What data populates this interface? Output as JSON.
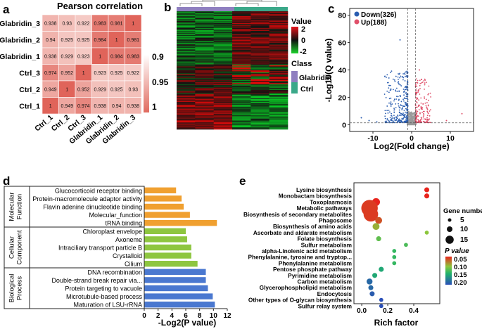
{
  "panels": [
    "a",
    "b",
    "c",
    "d",
    "e"
  ],
  "chart_data": [
    {
      "id": "a",
      "type": "heatmap",
      "title": "Pearson correlation",
      "rows": [
        "Glabridin_3",
        "Glabridin_2",
        "Glabridin_1",
        "Ctrl_3",
        "Ctrl_2",
        "Ctrl_1"
      ],
      "cols": [
        "Ctrl_1",
        "Ctrl_2",
        "Ctrl_3",
        "Glabridin_1",
        "Glabridin_2",
        "Glabridin_3"
      ],
      "values": [
        [
          "0.938",
          "0.93",
          "0.922",
          "0.983",
          "0.981",
          "1"
        ],
        [
          "0.94",
          "0.925",
          "0.925",
          "0.984",
          "1",
          "0.981"
        ],
        [
          "0.938",
          "0.929",
          "0.923",
          "1",
          "0.984",
          "0.983"
        ],
        [
          "0.974",
          "0.952",
          "1",
          "0.923",
          "0.925",
          "0.922"
        ],
        [
          "0.949",
          "1",
          "0.952",
          "0.929",
          "0.925",
          "0.93"
        ],
        [
          "1",
          "0.949",
          "0.974",
          "0.938",
          "0.94",
          "0.938"
        ]
      ],
      "colorbar_ticks": [
        "0.9",
        "0.95",
        "1"
      ],
      "colors": {
        "low": "#fbe7e3",
        "high": "#e0645a"
      }
    },
    {
      "id": "b",
      "type": "heatmap",
      "legend_value_title": "Value",
      "value_ticks": [
        "2",
        "0",
        "-2"
      ],
      "legend_class_title": "Class",
      "classes": [
        "Glabridin",
        "Ctrl"
      ],
      "class_colors": [
        "#8f7fc0",
        "#3aa889"
      ],
      "rows": 514,
      "columns": 6
    },
    {
      "id": "c",
      "type": "scatter",
      "xlabel": "Log2(Fold change)",
      "ylabel": "-Log10(Q value)",
      "xticks": [
        "-10",
        "0",
        "10"
      ],
      "yticks": [
        "0",
        "20",
        "40",
        "60",
        "80"
      ],
      "xlim": [
        -16,
        16
      ],
      "ylim": [
        -5,
        85
      ],
      "legend": [
        {
          "label": "Down(326)",
          "color": "#2a5db0"
        },
        {
          "label": "Up(188)",
          "color": "#e0506a"
        }
      ]
    },
    {
      "id": "d",
      "type": "bar",
      "orientation": "horizontal",
      "xlabel": "-Log2(P value)",
      "xticks": [
        "0",
        "2",
        "4",
        "6",
        "8",
        "10",
        "12"
      ],
      "xlim": [
        0,
        12
      ],
      "groups": [
        {
          "name": "Molecular Function",
          "color": "#f0a030",
          "categories": [
            "Glucocorticoid receptor binding",
            "Protein-macromolecule adaptor activity",
            "Flavin adenine dinucleotide binding",
            "Molecular_function",
            "tRNA binding"
          ],
          "values": [
            4.6,
            5.4,
            5.7,
            6.6,
            10.5
          ]
        },
        {
          "name": "Cellular Component",
          "color": "#8ec640",
          "categories": [
            "Chloroplast envelope",
            "Axoneme",
            "Intraciliary transport particle B",
            "Crystalloid",
            "Cilium"
          ],
          "values": [
            6.0,
            6.2,
            6.8,
            6.8,
            7.7
          ]
        },
        {
          "name": "Biological Process",
          "color": "#4a78d0",
          "categories": [
            "DNA recombination",
            "Double-strand break repair via...",
            "Protein targeting to vacuole",
            "Microtubule-based process",
            "Maturation of LSU-rRNA"
          ],
          "values": [
            8.9,
            8.9,
            9.2,
            9.9,
            10.2
          ]
        }
      ]
    },
    {
      "id": "e",
      "type": "scatter",
      "xlabel": "Rich factor",
      "xticks": [
        "0.0",
        "0.2",
        "0.4"
      ],
      "xlim": [
        -0.06,
        0.6
      ],
      "size_legend_title": "Gene number",
      "size_legend": [
        "5",
        "10",
        "15"
      ],
      "color_legend_title": "P value",
      "color_legend_ticks": [
        "0.05",
        "0.10",
        "0.15",
        "0.20"
      ],
      "pathways": [
        "Lysine biosynthesis",
        "Monobactam biosynthesis",
        "Toxoplasmosis",
        "Metabolic pathways",
        "Biosynthesis of secondary metabolites",
        "Phagosome",
        "Biosynthesis of amino acids",
        "Ascorbate and aldarate metabolism",
        "Folate biosynthesis",
        "Sulfur metabolism",
        "alpha-Linolenic acid metabolism",
        "Phenylalanine, tyrosine and tryptop...",
        "Phenylalanine metabolism",
        "Pentose phosphate pathway",
        "Pyrimidine metabolism",
        "Carbon metabolism",
        "Glycerophospholipid metabolism",
        "Endocytosis",
        "Other types of O-glycan biosynthesis",
        "Sulfur relay system"
      ],
      "rich_factor": [
        0.5,
        0.5,
        0.11,
        0.06,
        0.07,
        0.13,
        0.11,
        0.5,
        0.13,
        0.34,
        0.25,
        0.25,
        0.25,
        0.15,
        0.1,
        0.06,
        0.07,
        0.08,
        0.15,
        0.15
      ],
      "gene_number": [
        3,
        3,
        6,
        15,
        13,
        5,
        5,
        2,
        3,
        2,
        2,
        2,
        2,
        3,
        3,
        4,
        3,
        3,
        2,
        2
      ],
      "p_value": [
        0.01,
        0.01,
        0.01,
        0.02,
        0.02,
        0.03,
        0.07,
        0.08,
        0.1,
        0.11,
        0.12,
        0.12,
        0.12,
        0.14,
        0.14,
        0.19,
        0.19,
        0.2,
        0.21,
        0.21
      ]
    }
  ]
}
